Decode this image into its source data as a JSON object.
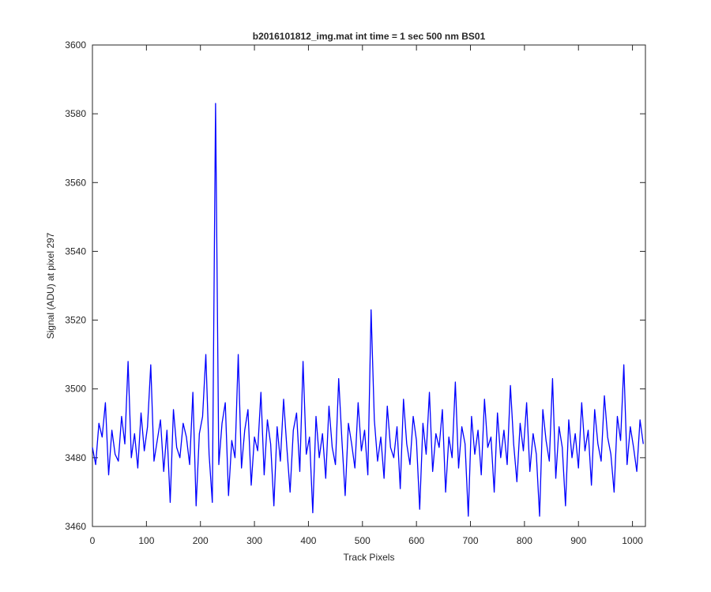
{
  "chart_data": {
    "type": "line",
    "title": "b2016101812_img.mat int time = 1 sec  500 nm BS01",
    "xlabel": "Track Pixels",
    "ylabel": "Signal (ADU) at pixel 297",
    "color": "#0000ff",
    "grid": false,
    "xlim": [
      0,
      1024
    ],
    "xticks": [
      0,
      100,
      200,
      300,
      400,
      500,
      600,
      700,
      800,
      900,
      1000
    ],
    "ylim": [
      3460,
      3600
    ],
    "yticks": [
      3460,
      3480,
      3500,
      3520,
      3540,
      3560,
      3580,
      3600
    ],
    "x": [
      0,
      6,
      12,
      18,
      24,
      30,
      36,
      42,
      48,
      54,
      60,
      66,
      72,
      78,
      84,
      90,
      96,
      102,
      108,
      114,
      120,
      126,
      132,
      138,
      144,
      150,
      156,
      162,
      168,
      174,
      180,
      186,
      192,
      198,
      204,
      210,
      216,
      222,
      228,
      234,
      240,
      246,
      252,
      258,
      264,
      270,
      276,
      282,
      288,
      294,
      300,
      306,
      312,
      318,
      324,
      330,
      336,
      342,
      348,
      354,
      360,
      366,
      372,
      378,
      384,
      390,
      396,
      402,
      408,
      414,
      420,
      426,
      432,
      438,
      444,
      450,
      456,
      462,
      468,
      474,
      480,
      486,
      492,
      498,
      504,
      510,
      516,
      522,
      528,
      534,
      540,
      546,
      552,
      558,
      564,
      570,
      576,
      582,
      588,
      594,
      600,
      606,
      612,
      618,
      624,
      630,
      636,
      642,
      648,
      654,
      660,
      666,
      672,
      678,
      684,
      690,
      696,
      702,
      708,
      714,
      720,
      726,
      732,
      738,
      744,
      750,
      756,
      762,
      768,
      774,
      780,
      786,
      792,
      798,
      804,
      810,
      816,
      822,
      828,
      834,
      840,
      846,
      852,
      858,
      864,
      870,
      876,
      882,
      888,
      894,
      900,
      906,
      912,
      918,
      924,
      930,
      936,
      942,
      948,
      954,
      960,
      966,
      972,
      978,
      984,
      990,
      996,
      1002,
      1008,
      1014,
      1020
    ],
    "values": [
      3483,
      3478,
      3490,
      3486,
      3496,
      3475,
      3488,
      3481,
      3479,
      3492,
      3484,
      3508,
      3480,
      3487,
      3477,
      3493,
      3482,
      3489,
      3507,
      3479,
      3485,
      3491,
      3476,
      3488,
      3467,
      3494,
      3483,
      3480,
      3490,
      3486,
      3478,
      3499,
      3466,
      3487,
      3492,
      3510,
      3481,
      3467,
      3583,
      3478,
      3490,
      3496,
      3469,
      3485,
      3480,
      3510,
      3477,
      3488,
      3494,
      3472,
      3486,
      3482,
      3499,
      3475,
      3491,
      3484,
      3466,
      3489,
      3479,
      3497,
      3483,
      3470,
      3488,
      3493,
      3476,
      3508,
      3481,
      3486,
      3464,
      3492,
      3480,
      3487,
      3474,
      3495,
      3483,
      3478,
      3503,
      3485,
      3469,
      3490,
      3484,
      3477,
      3496,
      3482,
      3488,
      3475,
      3523,
      3491,
      3479,
      3486,
      3474,
      3495,
      3483,
      3480,
      3489,
      3471,
      3497,
      3484,
      3478,
      3492,
      3485,
      3465,
      3490,
      3481,
      3499,
      3476,
      3487,
      3483,
      3494,
      3470,
      3486,
      3480,
      3502,
      3477,
      3489,
      3484,
      3463,
      3492,
      3481,
      3488,
      3475,
      3497,
      3483,
      3486,
      3470,
      3493,
      3480,
      3488,
      3478,
      3501,
      3484,
      3473,
      3490,
      3482,
      3496,
      3476,
      3487,
      3481,
      3463,
      3494,
      3485,
      3479,
      3503,
      3474,
      3489,
      3483,
      3466,
      3491,
      3480,
      3487,
      3477,
      3496,
      3482,
      3488,
      3472,
      3494,
      3484,
      3479,
      3498,
      3486,
      3481,
      3470,
      3492,
      3485,
      3507,
      3478,
      3489,
      3483,
      3476,
      3491,
      3484
    ]
  }
}
